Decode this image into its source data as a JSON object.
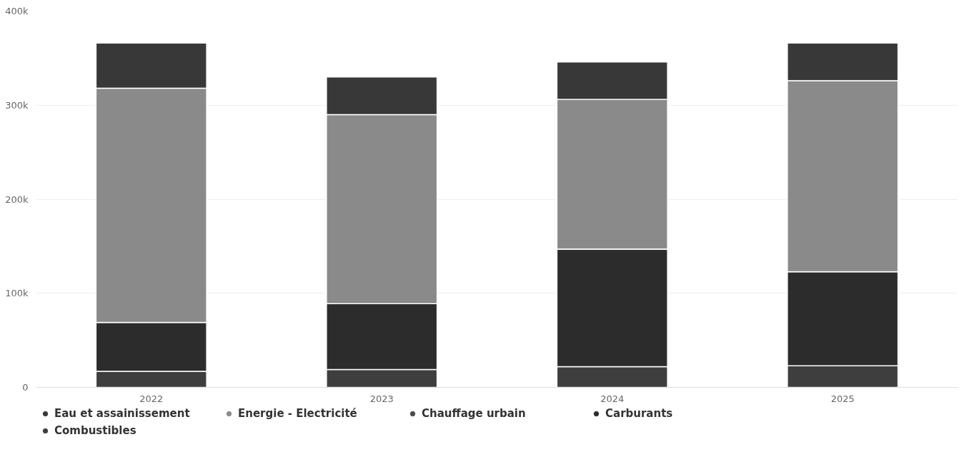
{
  "chart_data": {
    "type": "bar",
    "stacked": true,
    "categories": [
      "2022",
      "2023",
      "2024",
      "2025"
    ],
    "series": [
      {
        "name": "Combustibles",
        "color": "#3e3e3e",
        "values": [
          17000,
          19000,
          22000,
          23000
        ]
      },
      {
        "name": "Carburants",
        "color": "#2c2c2c",
        "values": [
          52000,
          70000,
          125000,
          100000
        ]
      },
      {
        "name": "Chauffage urbain",
        "color": "#4a4a4a",
        "values": [
          0,
          0,
          0,
          0
        ]
      },
      {
        "name": "Energie - Electricité",
        "color": "#8a8a8a",
        "values": [
          249000,
          201000,
          159000,
          203000
        ]
      },
      {
        "name": "Eau et assainissement",
        "color": "#383838",
        "values": [
          48000,
          40000,
          40000,
          40000
        ]
      }
    ],
    "ylim": [
      0,
      400000
    ],
    "yticks": [
      {
        "value": 0,
        "label": "0"
      },
      {
        "value": 100000,
        "label": "100k"
      },
      {
        "value": 200000,
        "label": "200k"
      },
      {
        "value": 300000,
        "label": "300k"
      },
      {
        "value": 400000,
        "label": "400k"
      }
    ],
    "grid": "y",
    "legend": "bottom"
  }
}
